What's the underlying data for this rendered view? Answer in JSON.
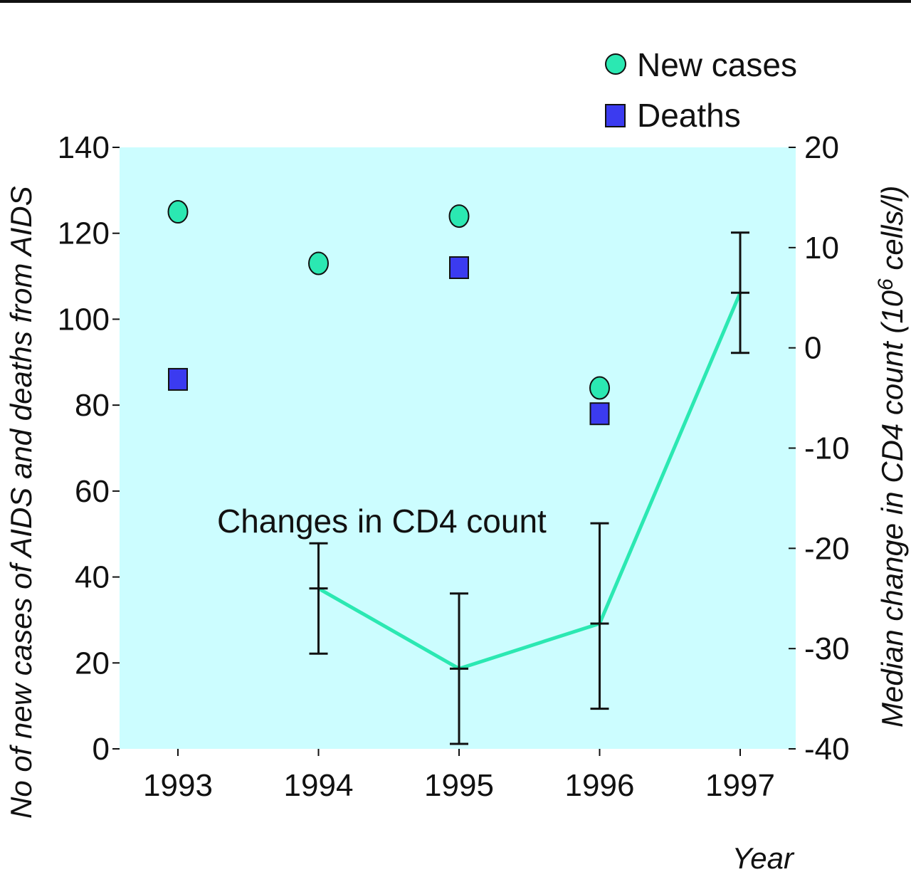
{
  "chart_data": {
    "type": "scatter",
    "x": [
      1993,
      1994,
      1995,
      1996,
      1997
    ],
    "xticks": [
      "1993",
      "1994",
      "1995",
      "1996",
      "1997"
    ],
    "xlabel": "Year",
    "ylabel_left": "No of new cases of AIDS and deaths from AIDS",
    "ylabel_right_prefix": "Median change in CD4 count (10",
    "ylabel_right_sup": "6",
    "ylabel_right_suffix": " cells/l)",
    "ylim_left": [
      0,
      140
    ],
    "yticks_left": [
      0,
      20,
      40,
      60,
      80,
      100,
      120,
      140
    ],
    "ylim_right": [
      -40,
      20
    ],
    "yticks_right": [
      -40,
      -30,
      -20,
      -10,
      0,
      10,
      20
    ],
    "grid": false,
    "background_color": "#ccfdff",
    "series": [
      {
        "name": "New cases",
        "axis": "left",
        "marker": "circle",
        "color": "#2be8b2",
        "points": [
          {
            "x": 1993,
            "y": 125
          },
          {
            "x": 1994,
            "y": 113
          },
          {
            "x": 1995,
            "y": 124
          },
          {
            "x": 1996,
            "y": 84
          }
        ]
      },
      {
        "name": "Deaths",
        "axis": "left",
        "marker": "square",
        "color": "#3b3bf0",
        "points": [
          {
            "x": 1993,
            "y": 86
          },
          {
            "x": 1995,
            "y": 112
          },
          {
            "x": 1996,
            "y": 78
          }
        ]
      },
      {
        "axis": "right",
        "marker": "line",
        "color": "#2be8b2",
        "points": [
          {
            "x": 1994,
            "y": -24,
            "lo": -30.5,
            "hi": -19.5
          },
          {
            "x": 1995,
            "y": -32,
            "lo": -39.5,
            "hi": -24.5
          },
          {
            "x": 1996,
            "y": -27.5,
            "lo": -36,
            "hi": -17.5
          },
          {
            "x": 1997,
            "y": 5.5,
            "lo": -0.5,
            "hi": 11.5
          }
        ]
      }
    ],
    "annotation": "Changes in CD4 count",
    "legend": {
      "position": "top-right",
      "entries": [
        {
          "label": "New cases",
          "marker": "circle",
          "color": "#2be8b2"
        },
        {
          "label": "Deaths",
          "marker": "square",
          "color": "#3b3bf0"
        }
      ]
    }
  }
}
